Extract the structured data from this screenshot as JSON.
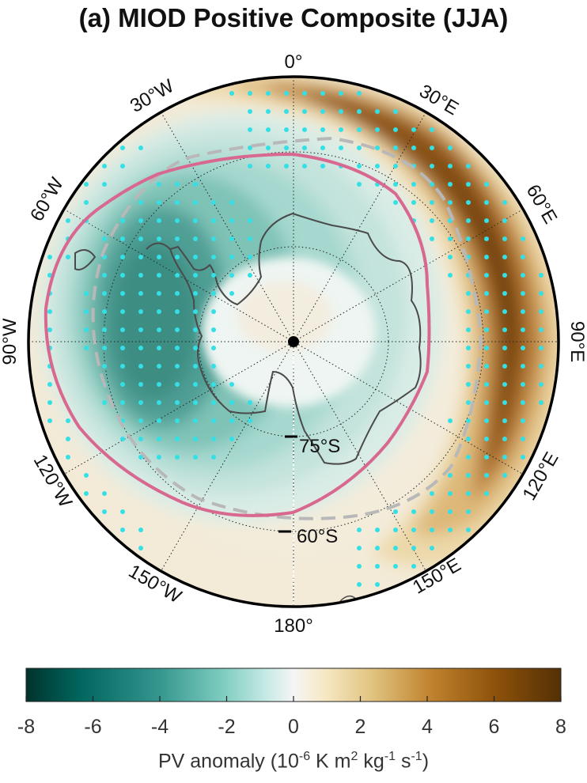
{
  "title": "(a) MIOD Positive Composite (JJA)",
  "map": {
    "projection": "south-polar-stereographic",
    "center": "South Pole",
    "longitude_labels": [
      "0°",
      "30°E",
      "60°E",
      "90°E",
      "120°E",
      "150°E",
      "180°",
      "150°W",
      "120°W",
      "90°W",
      "60°W",
      "30°W"
    ],
    "latitude_labels": [
      "75°S",
      "60°S"
    ],
    "overlays": {
      "stippling_color": "#33e0e6",
      "solid_contour_color": "#d8688f",
      "dashed_contour_color": "#b8b8b8",
      "coastline_color": "#4a4a4a"
    }
  },
  "colorbar": {
    "min": -8,
    "max": 8,
    "ticks": [
      "-8",
      "-6",
      "-4",
      "-2",
      "0",
      "2",
      "4",
      "6",
      "8"
    ],
    "label": "PV anomaly (10-6 K m2 kg-1 s-1)",
    "label_main": "PV anomaly (10",
    "label_exp1": "-6",
    "label_mid1": " K m",
    "label_exp2": "2",
    "label_mid2": " kg",
    "label_exp3": "-1",
    "label_mid3": " s",
    "label_exp4": "-1",
    "label_end": ")",
    "colormap": [
      "#00332c",
      "#01665e",
      "#35978f",
      "#80cdc1",
      "#c7eae5",
      "#f5f5f5",
      "#f6e8c3",
      "#dfc27d",
      "#bf812d",
      "#8c510a",
      "#543005"
    ]
  }
}
